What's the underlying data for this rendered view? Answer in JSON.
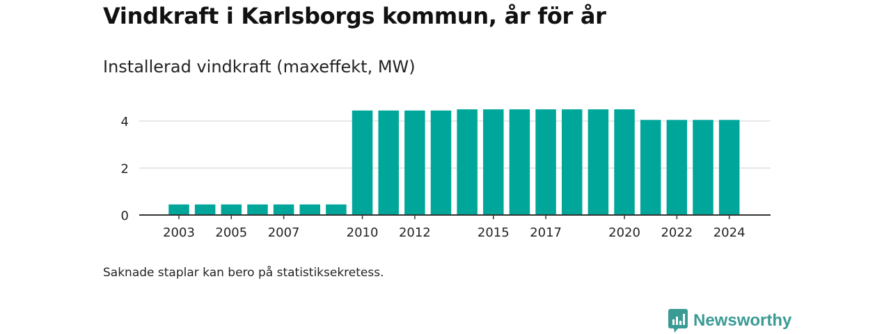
{
  "title": "Vindkraft i Karlsborgs kommun, år för år",
  "subtitle": "Installerad vindkraft (maxeffekt, MW)",
  "note": "Saknade staplar kan bero på statistiksekretess.",
  "brand": {
    "name": "Newsworthy",
    "icon": "newsworthy-logo-icon",
    "color": "#3a9a94"
  },
  "colors": {
    "bar": "#00a69a",
    "grid": "#d9d9d9",
    "axis": "#333333"
  },
  "chart_data": {
    "type": "bar",
    "title": "Installerad vindkraft (maxeffekt, MW)",
    "categories": [
      "2003",
      "2004",
      "2005",
      "2006",
      "2007",
      "2008",
      "2009",
      "2010",
      "2011",
      "2012",
      "2013",
      "2014",
      "2015",
      "2016",
      "2017",
      "2018",
      "2019",
      "2020",
      "2021",
      "2022",
      "2023",
      "2024"
    ],
    "values": [
      0.45,
      0.45,
      0.45,
      0.45,
      0.45,
      0.45,
      0.45,
      4.45,
      4.45,
      4.45,
      4.45,
      4.5,
      4.5,
      4.5,
      4.5,
      4.5,
      4.5,
      4.5,
      4.05,
      4.05,
      4.05,
      4.05
    ],
    "xtick_labels": [
      "2003",
      "2005",
      "2007",
      "2010",
      "2012",
      "2015",
      "2017",
      "2020",
      "2022",
      "2024"
    ],
    "yticks": [
      0,
      2,
      4
    ],
    "ylim": [
      0,
      4.5
    ],
    "grid": true,
    "xlabel": "",
    "ylabel": ""
  }
}
